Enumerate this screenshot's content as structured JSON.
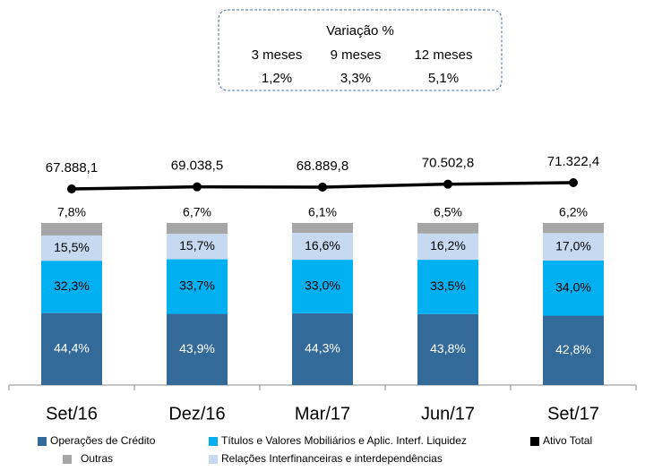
{
  "chart_data": {
    "type": "bar",
    "categories": [
      "Set/16",
      "Dez/16",
      "Mar/17",
      "Jun/17",
      "Set/17"
    ],
    "ylim": [
      0,
      100
    ],
    "series": [
      {
        "name": "Operações de Crédito",
        "color": "#336a99",
        "values": [
          44.4,
          43.9,
          44.3,
          43.8,
          42.8
        ],
        "value_labels": [
          "44,4%",
          "43,9%",
          "44,3%",
          "43,8%",
          "42,8%"
        ]
      },
      {
        "name": "Títulos e Valores Mobiliários e Aplic. Interf. Liquidez",
        "color": "#00b0f0",
        "values": [
          32.3,
          33.7,
          33.0,
          33.5,
          34.0
        ],
        "value_labels": [
          "32,3%",
          "33,7%",
          "33,0%",
          "33,5%",
          "34,0%"
        ]
      },
      {
        "name": "Relações Interfinanceiras e interdependências",
        "color": "#c6d9f1",
        "values": [
          15.5,
          15.7,
          16.6,
          16.2,
          17.0
        ],
        "value_labels": [
          "15,5%",
          "15,7%",
          "16,6%",
          "16,2%",
          "17,0%"
        ]
      },
      {
        "name": "Outras",
        "color": "#a6a6a6",
        "values": [
          7.8,
          6.7,
          6.1,
          6.5,
          6.2
        ],
        "value_labels": [
          "7,8%",
          "6,7%",
          "6,1%",
          "6,5%",
          "6,2%"
        ]
      }
    ],
    "line": {
      "name": "Ativo Total",
      "color": "#000000",
      "values": [
        67888.1,
        69038.5,
        68889.8,
        70502.8,
        71322.4
      ],
      "value_labels": [
        "67.888,1",
        "69.038,5",
        "68.889,8",
        "70.502,8",
        "71.322,4"
      ]
    },
    "variation": {
      "title": "Variação %",
      "periods": [
        "3 meses",
        "9 meses",
        "12 meses"
      ],
      "values": [
        1.2,
        3.3,
        5.1
      ],
      "value_labels": [
        "1,2%",
        "3,3%",
        "5,1%"
      ]
    }
  }
}
